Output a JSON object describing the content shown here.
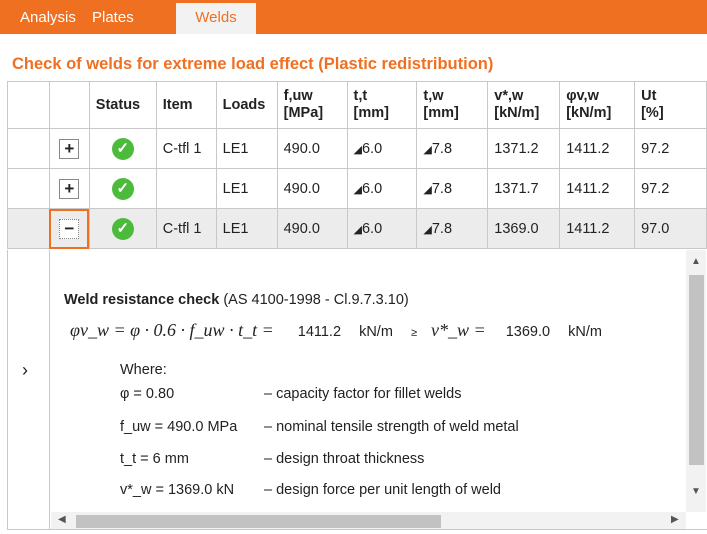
{
  "tabs": [
    {
      "label": "Analysis"
    },
    {
      "label": "Plates"
    },
    {
      "label": "Welds",
      "active": true
    }
  ],
  "title": "Check of welds for extreme load effect (Plastic redistribution)",
  "colors": {
    "accent": "#f07022",
    "ok": "#4cbb3c"
  },
  "table": {
    "headers": [
      {
        "l1": "Status",
        "l2": ""
      },
      {
        "l1": "Item",
        "l2": ""
      },
      {
        "l1": "Loads",
        "l2": ""
      },
      {
        "l1": "f,uw",
        "l2": "[MPa]"
      },
      {
        "l1": "t,t",
        "l2": "[mm]"
      },
      {
        "l1": "t,w",
        "l2": "[mm]"
      },
      {
        "l1": "v*,w",
        "l2": "[kN/m]"
      },
      {
        "l1": "φv,w",
        "l2": "[kN/m]"
      },
      {
        "l1": "Ut",
        "l2": "[%]"
      }
    ],
    "rows": [
      {
        "toggle": "+",
        "status": "check-circle-icon",
        "item": "C-tfl 1",
        "loads": "LE1",
        "fuw": "490.0",
        "tt": "6.0",
        "tw": "7.8",
        "vw": "1371.2",
        "phivw": "1411.2",
        "ut": "97.2"
      },
      {
        "toggle": "+",
        "status": "check-circle-icon",
        "item": "",
        "loads": "LE1",
        "fuw": "490.0",
        "tt": "6.0",
        "tw": "7.8",
        "vw": "1371.7",
        "phivw": "1411.2",
        "ut": "97.2"
      },
      {
        "toggle": "−",
        "status": "check-circle-icon",
        "item": "C-tfl 1",
        "loads": "LE1",
        "fuw": "490.0",
        "tt": "6.0",
        "tw": "7.8",
        "vw": "1369.0",
        "phivw": "1411.2",
        "ut": "97.0"
      }
    ]
  },
  "detail": {
    "heading": "Weld resistance check",
    "ref": "(AS 4100-1998 - Cl.9.7.3.10)",
    "formula": "φv_w = φ · 0.6 · f_uw · t_t =",
    "resistance": "1411.2",
    "unit1": "kN/m",
    "ge": "≥",
    "rhs": "v*_w =",
    "load": "1369.0",
    "unit2": "kN/m",
    "where": "Where:",
    "defs": [
      {
        "sym": "φ = 0.80",
        "desc": "– capacity factor for fillet welds"
      },
      {
        "sym": "f_uw = 490.0 MPa",
        "desc": "– nominal tensile strength of weld metal"
      },
      {
        "sym": "t_t = 6 mm",
        "desc": "– design throat thickness"
      },
      {
        "sym": "v*_w = 1369.0 kN",
        "desc": "– design force per unit length of weld"
      }
    ]
  }
}
